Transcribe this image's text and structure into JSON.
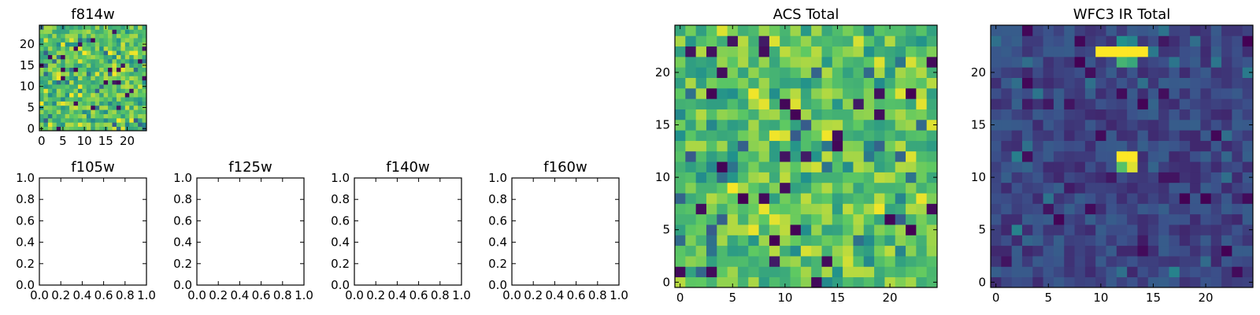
{
  "colormap": [
    "#440154",
    "#3b528b",
    "#21918c",
    "#5ec962",
    "#fde725"
  ],
  "chart_data": [
    {
      "type": "heatmap",
      "title": "f814w",
      "grid_size": 25,
      "xlim": [
        -0.5,
        24.5
      ],
      "ylim": [
        -0.5,
        24.5
      ],
      "xticks": [
        0,
        5,
        10,
        15,
        20
      ],
      "yticks": [
        0,
        5,
        10,
        15,
        20
      ],
      "value_range": [
        0,
        1
      ],
      "values": null
    },
    {
      "type": "empty",
      "title": "f105w",
      "xlim": [
        0,
        1
      ],
      "ylim": [
        0,
        1
      ],
      "xticks": [
        0.0,
        0.2,
        0.4,
        0.6,
        0.8,
        1.0
      ],
      "yticks": [
        0.0,
        0.2,
        0.4,
        0.6,
        0.8,
        1.0
      ]
    },
    {
      "type": "empty",
      "title": "f125w",
      "xlim": [
        0,
        1
      ],
      "ylim": [
        0,
        1
      ],
      "xticks": [
        0.0,
        0.2,
        0.4,
        0.6,
        0.8,
        1.0
      ],
      "yticks": [
        0.0,
        0.2,
        0.4,
        0.6,
        0.8,
        1.0
      ]
    },
    {
      "type": "empty",
      "title": "f140w",
      "xlim": [
        0,
        1
      ],
      "ylim": [
        0,
        1
      ],
      "xticks": [
        0.0,
        0.2,
        0.4,
        0.6,
        0.8,
        1.0
      ],
      "yticks": [
        0.0,
        0.2,
        0.4,
        0.6,
        0.8,
        1.0
      ]
    },
    {
      "type": "empty",
      "title": "f160w",
      "xlim": [
        0,
        1
      ],
      "ylim": [
        0,
        1
      ],
      "xticks": [
        0.0,
        0.2,
        0.4,
        0.6,
        0.8,
        1.0
      ],
      "yticks": [
        0.0,
        0.2,
        0.4,
        0.6,
        0.8,
        1.0
      ]
    },
    {
      "type": "heatmap",
      "title": "ACS Total",
      "grid_size": 25,
      "xlim": [
        -0.5,
        24.5
      ],
      "ylim": [
        -0.5,
        24.5
      ],
      "xticks": [
        0,
        5,
        10,
        15,
        20
      ],
      "yticks": [
        0,
        5,
        10,
        15,
        20
      ],
      "value_range": [
        0,
        1
      ],
      "values": null
    },
    {
      "type": "heatmap",
      "title": "WFC3 IR Total",
      "grid_size": 25,
      "xlim": [
        -0.5,
        24.5
      ],
      "ylim": [
        -0.5,
        24.5
      ],
      "xticks": [
        0,
        5,
        10,
        15,
        20
      ],
      "yticks": [
        0,
        5,
        10,
        15,
        20
      ],
      "value_range": [
        0,
        1
      ],
      "values": null
    }
  ]
}
